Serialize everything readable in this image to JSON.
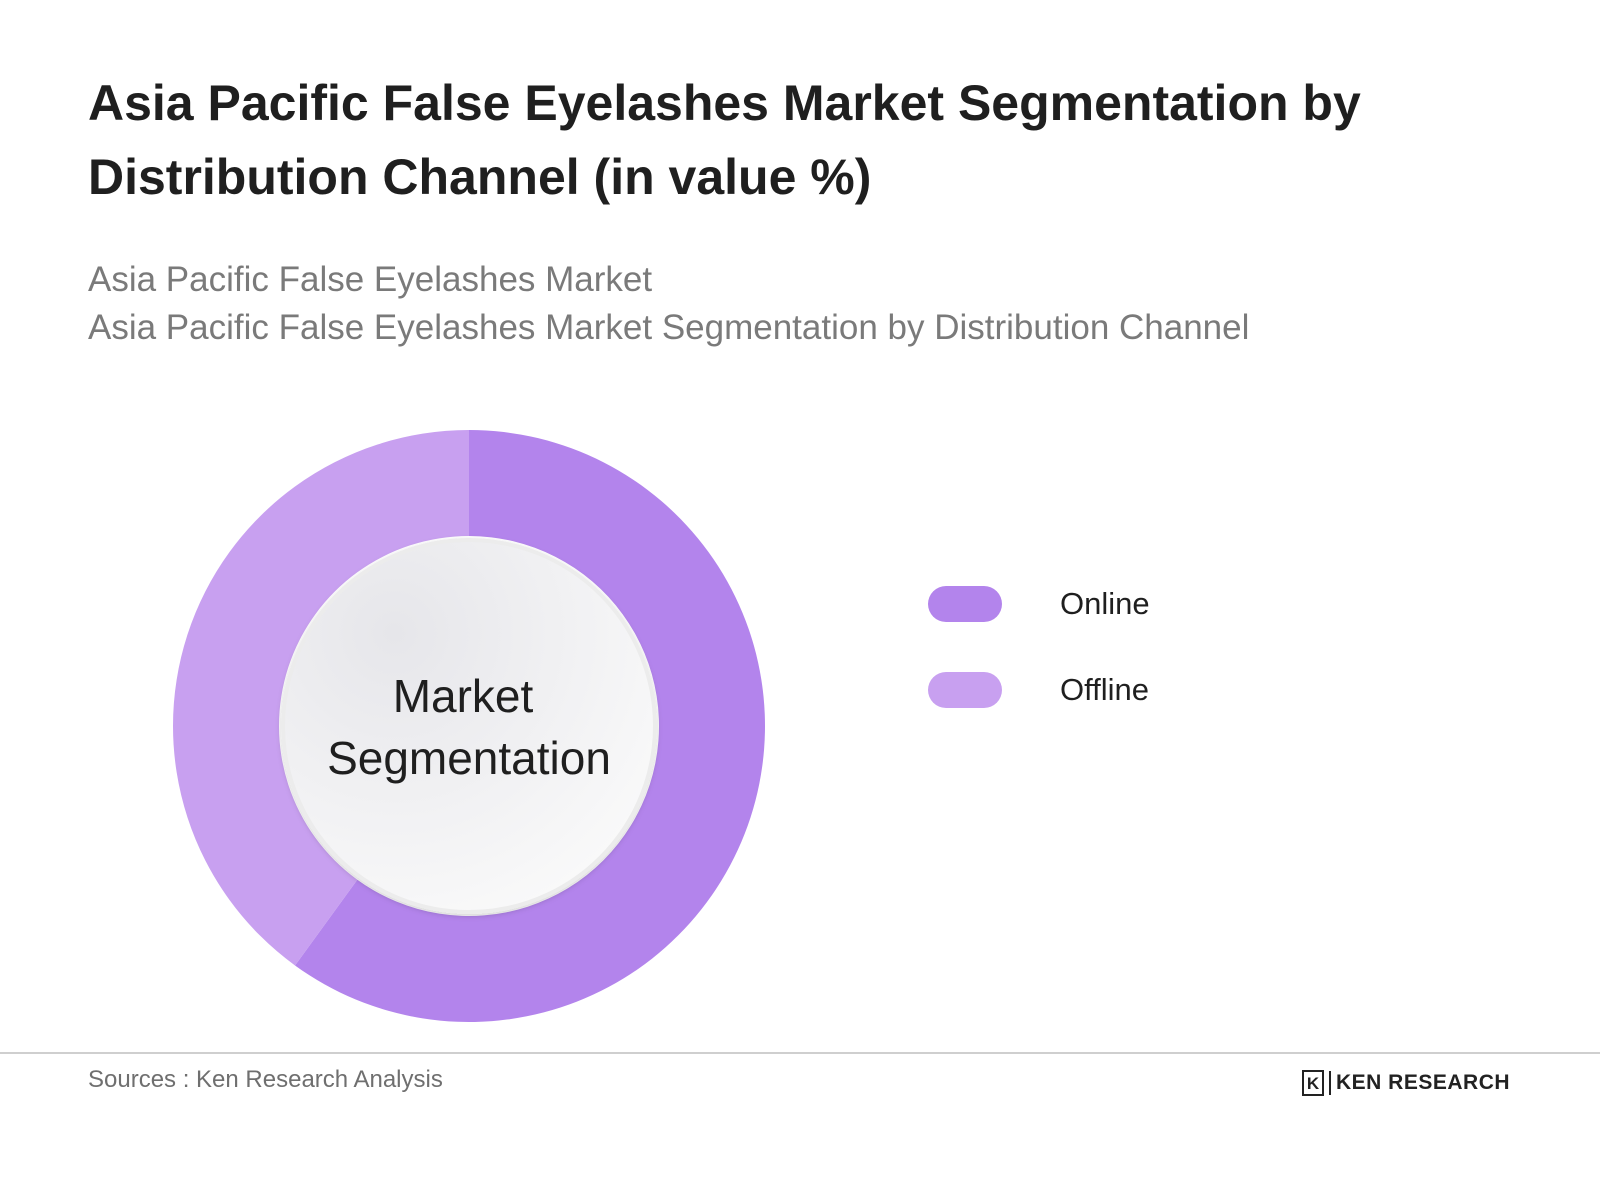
{
  "chart_data": {
    "type": "pie",
    "title": "Asia Pacific False Eyelashes Market Segmentation by Distribution Channel (in value %)",
    "subtitle_lines": [
      "Asia Pacific False Eyelashes Market",
      "Asia Pacific False Eyelashes Market Segmentation by Distribution Channel"
    ],
    "center_label_lines": [
      "Market",
      "Segmentation"
    ],
    "categories": [
      "Online",
      "Offline"
    ],
    "values": [
      60,
      40
    ],
    "colors": [
      "#b384ec",
      "#c8a0f0"
    ],
    "legend_position": "right",
    "donut": true
  },
  "footer": {
    "source": "Sources : Ken Research Analysis",
    "brand_mark": "K",
    "brand_name": "KEN RESEARCH"
  }
}
